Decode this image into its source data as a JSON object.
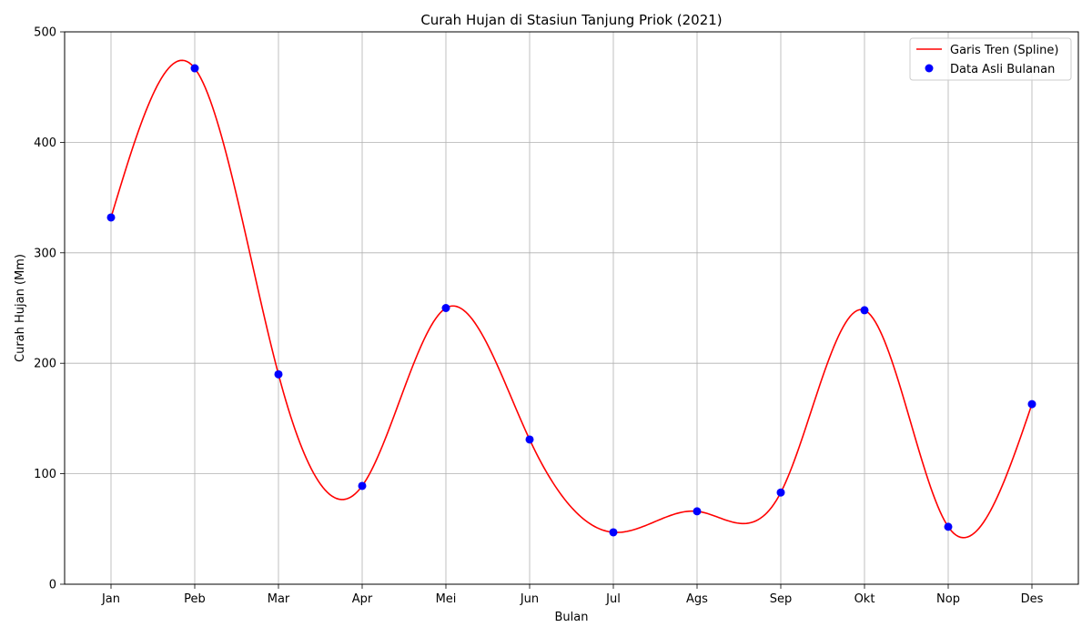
{
  "chart_data": {
    "type": "line",
    "title": "Curah Hujan di Stasiun Tanjung Priok (2021)",
    "xlabel": "Bulan",
    "ylabel": "Curah Hujan (Mm)",
    "categories": [
      "Jan",
      "Peb",
      "Mar",
      "Apr",
      "Mei",
      "Jun",
      "Jul",
      "Ags",
      "Sep",
      "Okt",
      "Nop",
      "Des"
    ],
    "ylim": [
      0,
      500
    ],
    "yticks": [
      0,
      100,
      200,
      300,
      400,
      500
    ],
    "grid": true,
    "legend_position": "top-right",
    "series": [
      {
        "name": "Garis Tren (Spline)",
        "kind": "spline-line",
        "color": "#ff0000",
        "values": [
          332,
          467,
          190,
          89,
          250,
          131,
          47,
          66,
          83,
          248,
          52,
          163
        ]
      },
      {
        "name": "Data Asli Bulanan",
        "kind": "points",
        "color": "#0000ff",
        "values": [
          332,
          467,
          190,
          89,
          250,
          131,
          47,
          66,
          83,
          248,
          52,
          163
        ]
      }
    ]
  }
}
